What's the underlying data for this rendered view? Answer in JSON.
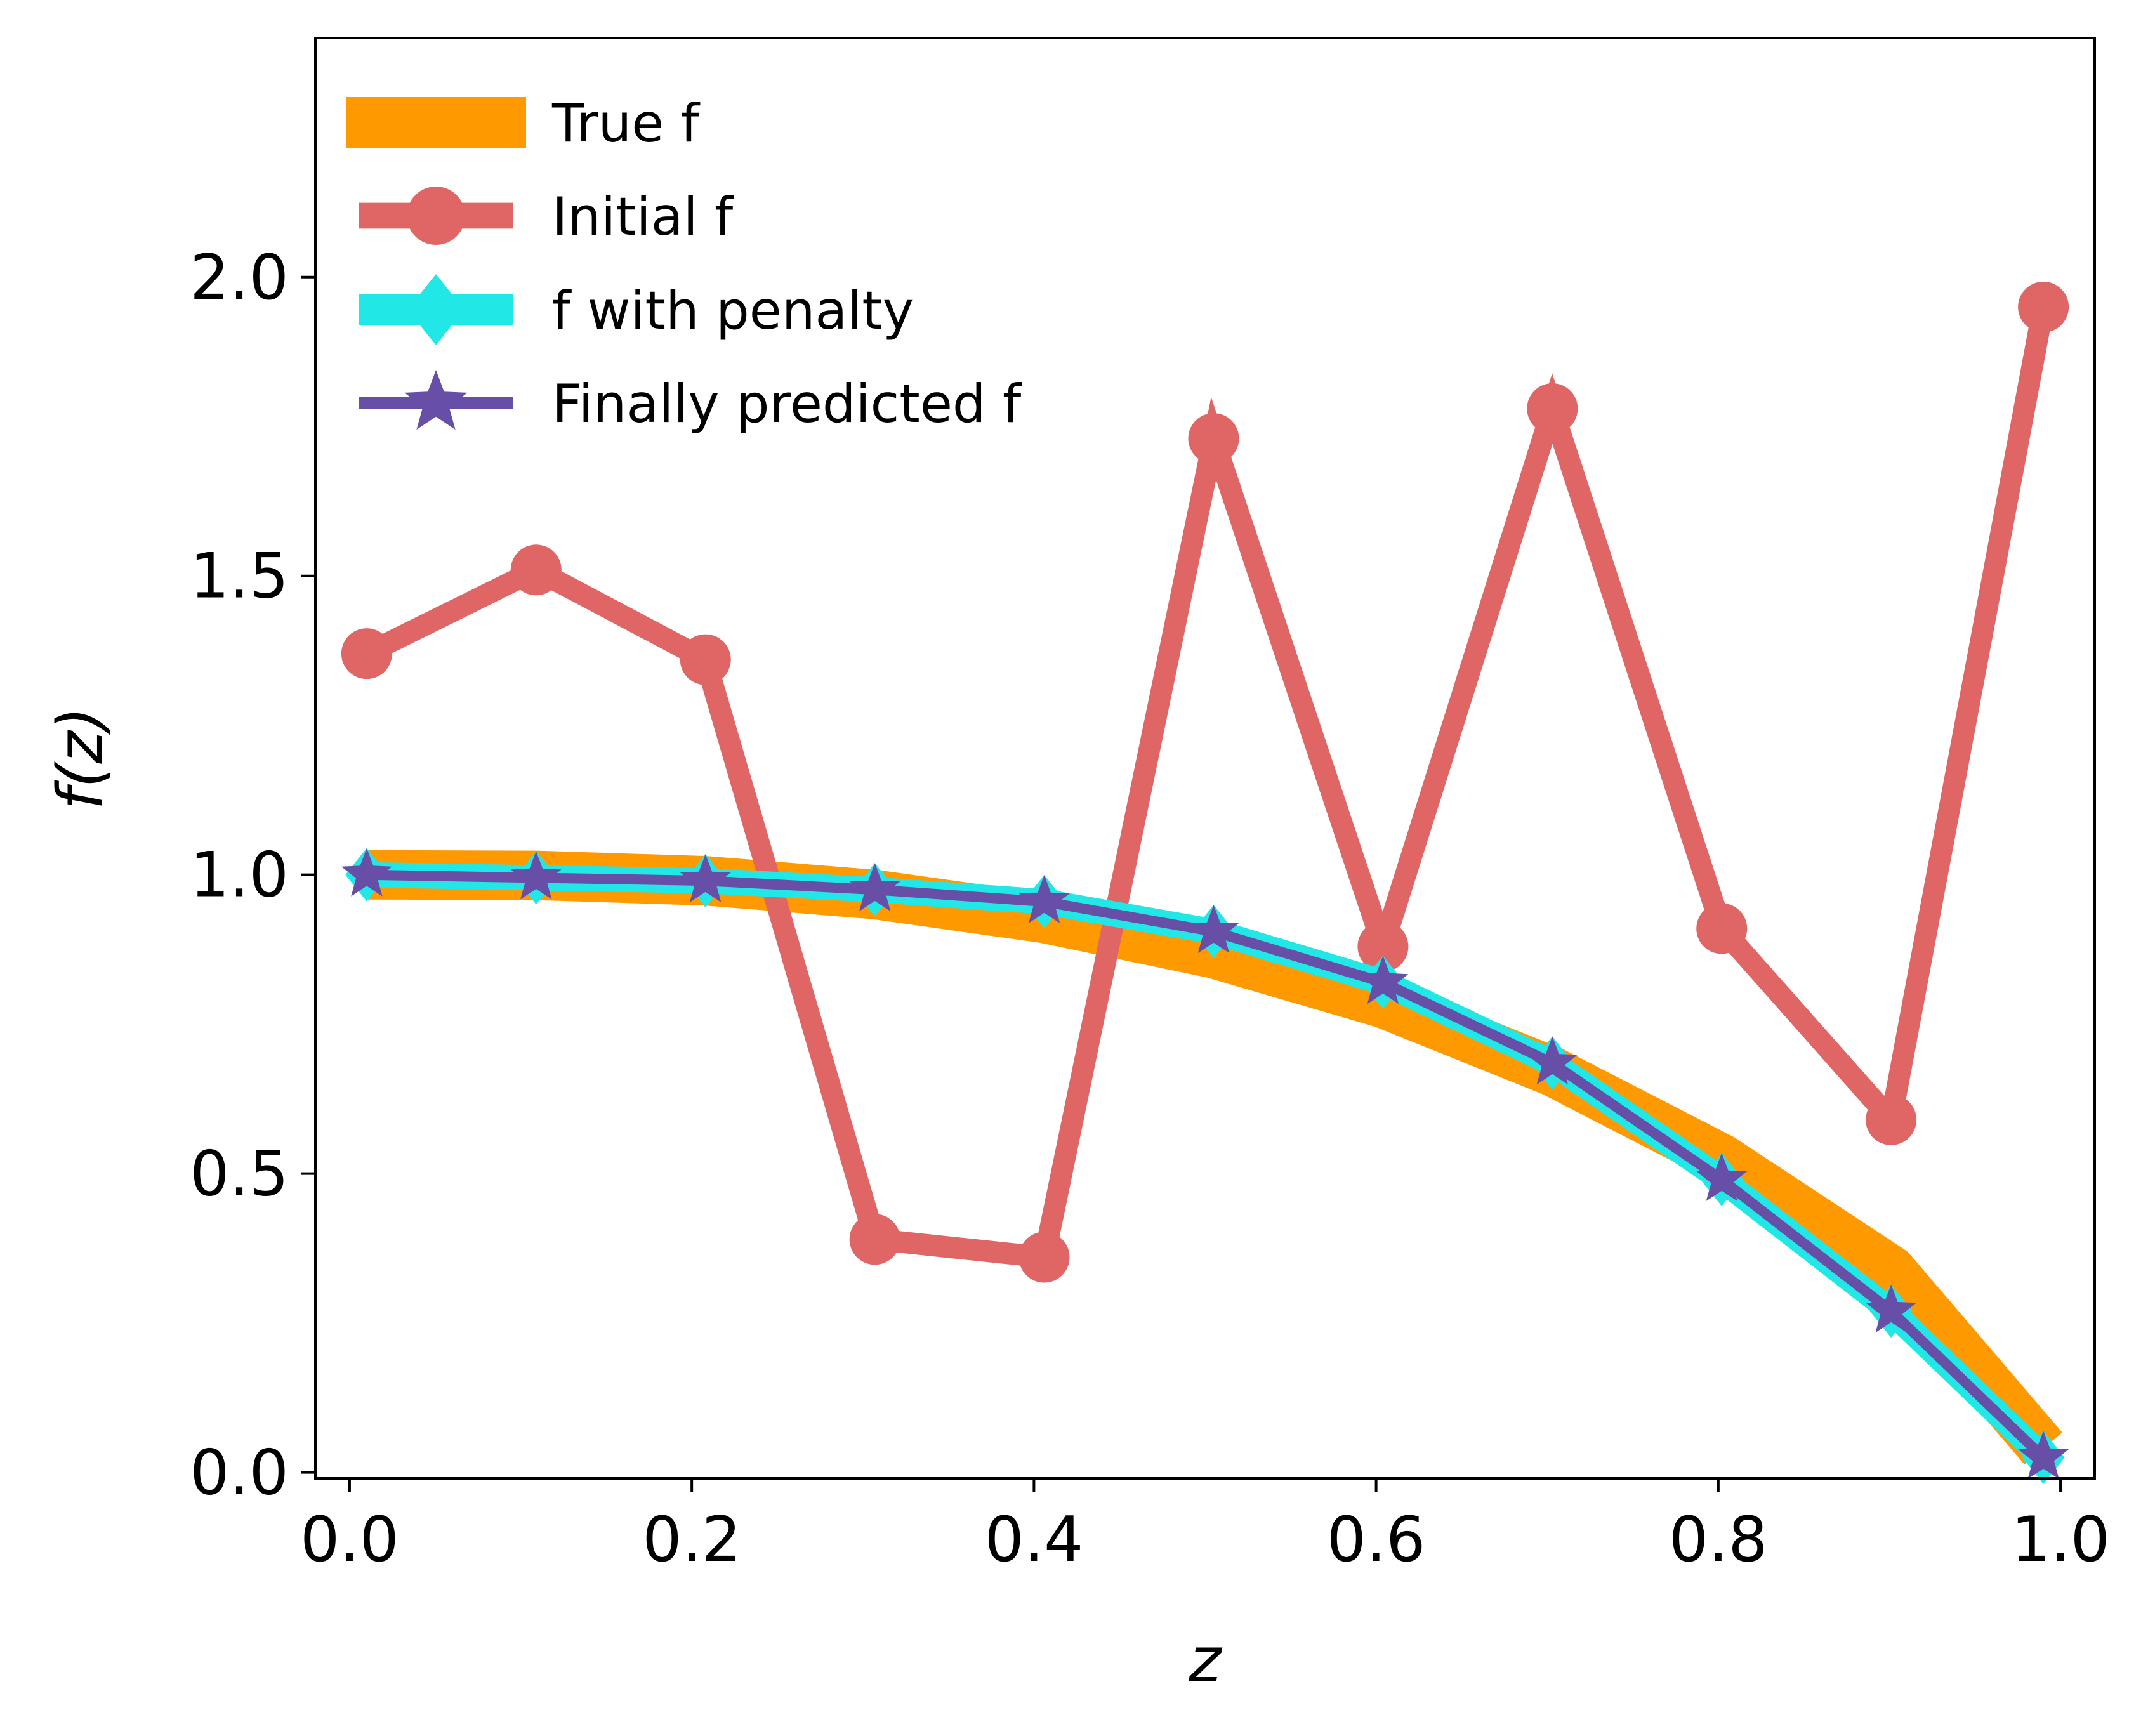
{
  "chart_data": {
    "type": "line",
    "xlabel": "z",
    "ylabel": "f(z)",
    "xlim": [
      -0.02,
      1.02
    ],
    "ylim": [
      -0.01,
      2.4
    ],
    "xticks": [
      "0.0",
      "0.2",
      "0.4",
      "0.6",
      "0.8",
      "1.0"
    ],
    "yticks": [
      "0.0",
      "0.5",
      "1.0",
      "1.5",
      "2.0"
    ],
    "grid": false,
    "legend_position": "upper-left",
    "x": [
      0.01,
      0.109,
      0.208,
      0.307,
      0.406,
      0.505,
      0.604,
      0.703,
      0.802,
      0.901,
      0.99
    ],
    "series": [
      {
        "name": "True f",
        "color": "#ff9900",
        "style": "thick-band",
        "values": [
          1.0,
          0.999,
          0.99,
          0.967,
          0.927,
          0.868,
          0.785,
          0.671,
          0.525,
          0.338,
          0.04
        ]
      },
      {
        "name": "Initial f",
        "color": "#e06666",
        "marker": "circle",
        "values": [
          1.37,
          1.51,
          1.36,
          0.39,
          0.36,
          1.73,
          0.88,
          1.78,
          0.91,
          0.59,
          1.95
        ]
      },
      {
        "name": "f with penalty",
        "color": "#22e7e7",
        "marker": "diamond",
        "values": [
          1.0,
          0.995,
          0.99,
          0.975,
          0.955,
          0.905,
          0.82,
          0.685,
          0.49,
          0.27,
          0.025
        ]
      },
      {
        "name": "Finally predicted f",
        "color": "#674ea7",
        "marker": "star",
        "values": [
          1.0,
          0.995,
          0.99,
          0.975,
          0.955,
          0.905,
          0.82,
          0.685,
          0.49,
          0.27,
          0.025
        ]
      }
    ]
  }
}
